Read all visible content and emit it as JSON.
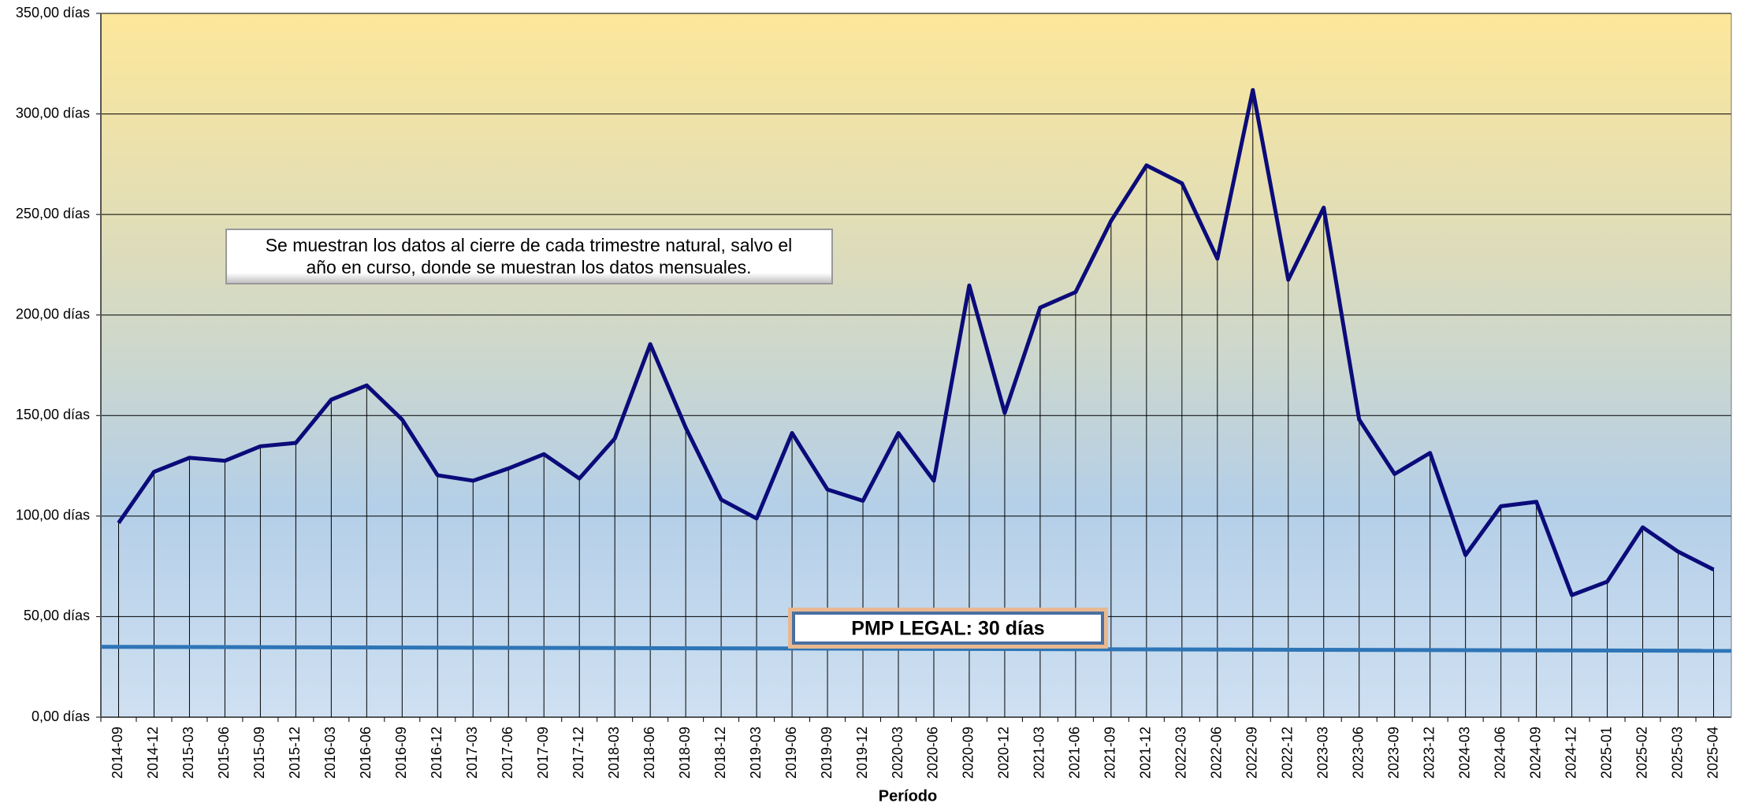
{
  "chart_data": {
    "type": "line",
    "x_label": "Período",
    "categories": [
      "2014-09",
      "2014-12",
      "2015-03",
      "2015-06",
      "2015-09",
      "2015-12",
      "2016-03",
      "2016-06",
      "2016-09",
      "2016-12",
      "2017-03",
      "2017-06",
      "2017-09",
      "2017-12",
      "2018-03",
      "2018-06",
      "2018-09",
      "2018-12",
      "2019-03",
      "2019-06",
      "2019-09",
      "2019-12",
      "2020-03",
      "2020-06",
      "2020-09",
      "2020-12",
      "2021-03",
      "2021-06",
      "2021-09",
      "2021-12",
      "2022-03",
      "2022-06",
      "2022-09",
      "2022-12",
      "2023-03",
      "2023-06",
      "2023-09",
      "2023-12",
      "2024-03",
      "2024-06",
      "2024-09",
      "2024-12",
      "2025-01",
      "2025-02",
      "2025-03",
      "2025-04"
    ],
    "color": "#0b0b7a",
    "values": [
      96.6,
      122,
      129,
      127.5,
      134.7,
      136.4,
      157.9,
      165,
      148,
      120.3,
      117.6,
      123.7,
      130.8,
      118.7,
      138.6,
      185.5,
      144,
      108.2,
      98.8,
      141.3,
      113.2,
      107.6,
      141.3,
      117.6,
      214.7,
      151.3,
      203.7,
      211.4,
      246.8,
      274.4,
      265.5,
      228,
      311.9,
      217.5,
      253.4,
      148,
      120.9,
      131.4,
      80.6,
      104.9,
      107.1,
      60.7,
      67.4,
      94.4,
      82.3,
      73.4
    ],
    "ylim": [
      0,
      350
    ],
    "yticks": [
      {
        "value": 0,
        "label": "0,00 días"
      },
      {
        "value": 50,
        "label": "50,00 días"
      },
      {
        "value": 100,
        "label": "100,00 días"
      },
      {
        "value": 150,
        "label": "150,00 días"
      },
      {
        "value": 200,
        "label": "200,00 días"
      },
      {
        "value": 250,
        "label": "250,00 días"
      },
      {
        "value": 300,
        "label": "300,00 días"
      },
      {
        "value": 350,
        "label": "350,00 días"
      }
    ],
    "grid": true,
    "reference_line": {
      "label": "PMP LEGAL: 30 días",
      "values": [
        35,
        33
      ],
      "color": "#2e75b6"
    },
    "annotation": [
      "Se muestran los datos al cierre de cada trimestre natural, salvo el",
      "año en curso, donde se muestran los datos mensuales."
    ]
  }
}
